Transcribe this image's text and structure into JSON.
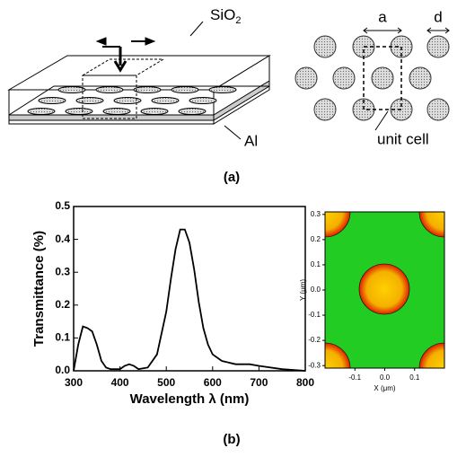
{
  "figure": {
    "panel_a": {
      "label": "(a)",
      "layer_top": {
        "text": "SiO",
        "subscript": "2"
      },
      "layer_bottom": "Al",
      "pitch": "a",
      "diameter": "d",
      "cell": "unit cell"
    },
    "panel_b": {
      "label": "(b)"
    }
  },
  "chart_data": [
    {
      "type": "line",
      "xlabel": "Wavelength λ (nm)",
      "ylabel": "Transmittance (%)",
      "x": [
        300,
        310,
        320,
        330,
        340,
        350,
        360,
        370,
        380,
        400,
        410,
        420,
        430,
        440,
        460,
        480,
        500,
        510,
        520,
        530,
        540,
        550,
        560,
        570,
        580,
        590,
        600,
        620,
        650,
        680,
        700,
        750,
        800
      ],
      "series": [
        {
          "color": "#000000",
          "values": [
            0.0,
            0.08,
            0.135,
            0.13,
            0.12,
            0.08,
            0.03,
            0.01,
            0.005,
            0.005,
            0.015,
            0.02,
            0.015,
            0.005,
            0.01,
            0.05,
            0.18,
            0.28,
            0.37,
            0.43,
            0.43,
            0.39,
            0.31,
            0.21,
            0.13,
            0.08,
            0.05,
            0.03,
            0.02,
            0.02,
            0.015,
            0.005,
            0.0
          ]
        }
      ],
      "xlim": [
        300,
        800
      ],
      "xticks": [
        300,
        400,
        500,
        600,
        700,
        800
      ],
      "ylim": [
        0,
        0.5
      ],
      "yticks": [
        {
          "value": 0,
          "label": "0.0"
        },
        0.1,
        0.2,
        0.3,
        0.4,
        0.5
      ]
    },
    {
      "type": "field-map",
      "xlabel": "X (μm)",
      "ylabel": "Y (μm)",
      "xlim": [
        -0.2,
        0.2
      ],
      "xticks": [
        -0.1,
        {
          "value": 0,
          "label": "0.0"
        },
        0.1
      ],
      "ylim": [
        -0.31,
        0.31
      ],
      "yticks": [
        0.3,
        0.2,
        0.1,
        {
          "value": 0,
          "label": "0.0"
        },
        -0.1,
        -0.2,
        -0.3
      ]
    }
  ]
}
